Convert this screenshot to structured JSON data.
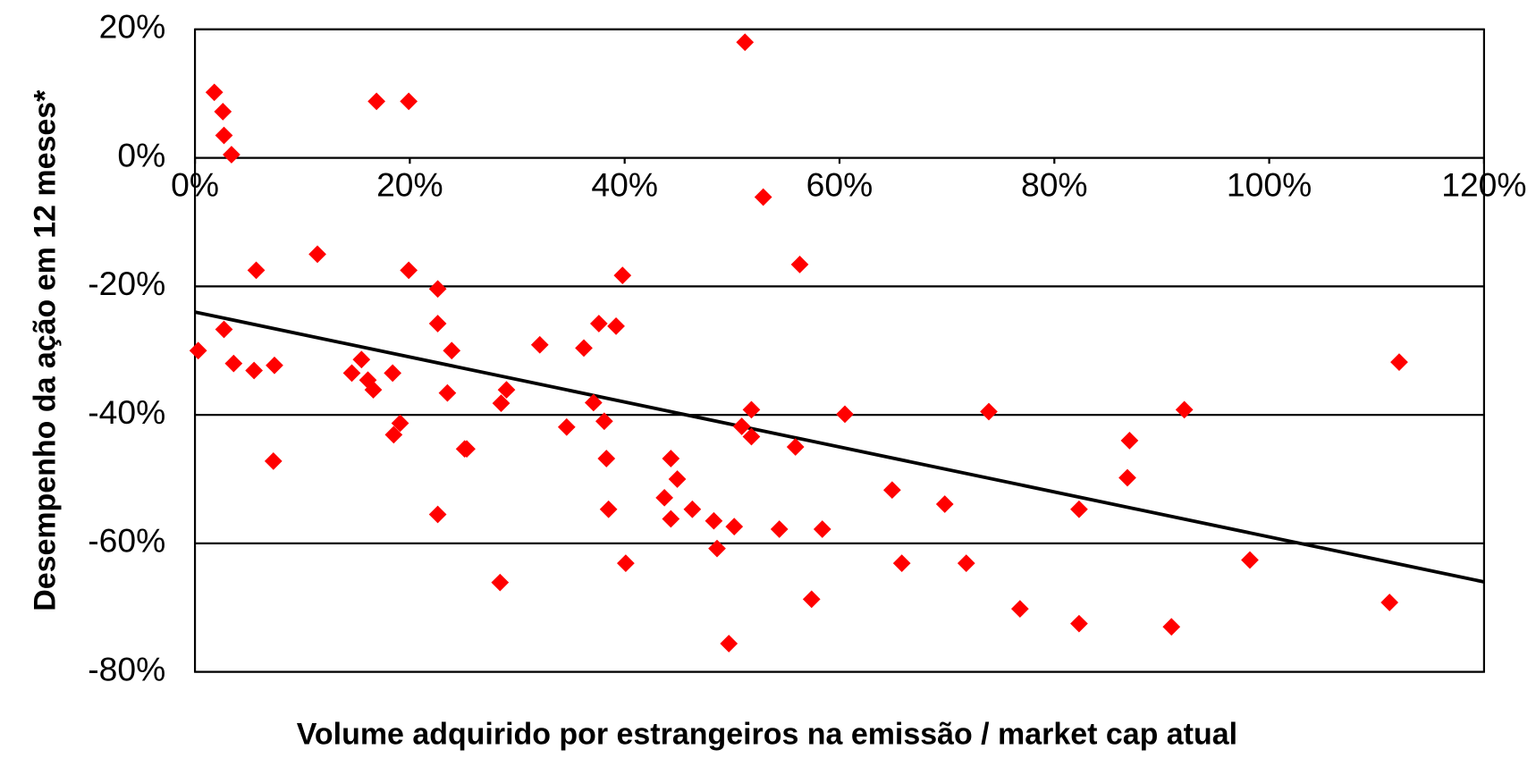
{
  "chart_data": {
    "type": "scatter",
    "x_label": "Volume adquirido por estrangeiros na emissão / market cap atual",
    "y_label": "Desempenho da ação em 12 meses*",
    "color": "#ff0000",
    "x": [
      1.8,
      2.6,
      2.7,
      3.4,
      16.9,
      19.9,
      51.2,
      52.9,
      11.4,
      5.7,
      19.9,
      22.6,
      39.8,
      56.3,
      0.3,
      2.7,
      3.6,
      5.5,
      7.4,
      7.3,
      14.6,
      15.5,
      16.1,
      16.6,
      18.4,
      18.5,
      19.1,
      22.6,
      23.9,
      23.5,
      25.1,
      25.3,
      22.6,
      28.4,
      28.5,
      29.0,
      32.1,
      34.6,
      36.2,
      37.6,
      37.1,
      38.1,
      38.3,
      38.5,
      39.2,
      40.1,
      43.7,
      44.3,
      44.3,
      44.9,
      46.3,
      48.3,
      48.6,
      50.2,
      49.7,
      50.9,
      51.8,
      51.8,
      55.9,
      54.4,
      57.4,
      58.4,
      60.5,
      64.9,
      65.8,
      69.8,
      71.8,
      73.9,
      76.8,
      82.3,
      82.3,
      86.8,
      87.0,
      90.9,
      92.1,
      98.2,
      112.1,
      111.2
    ],
    "values": [
      10.2,
      7.2,
      3.5,
      0.5,
      8.8,
      8.8,
      18.0,
      -6.1,
      -15.0,
      -17.5,
      -17.5,
      -20.4,
      -18.3,
      -16.6,
      -30.0,
      -26.7,
      -32.0,
      -33.1,
      -32.3,
      -47.2,
      -33.5,
      -31.4,
      -34.6,
      -36.1,
      -33.5,
      -43.1,
      -41.3,
      -25.8,
      -30.0,
      -36.6,
      -45.3,
      -45.3,
      -55.5,
      -66.1,
      -38.2,
      -36.1,
      -29.1,
      -41.9,
      -29.6,
      -25.8,
      -38.1,
      -41.0,
      -46.8,
      -54.7,
      -26.2,
      -63.1,
      -52.9,
      -46.8,
      -56.2,
      -50.0,
      -54.7,
      -56.5,
      -60.8,
      -57.4,
      -75.6,
      -41.8,
      -39.2,
      -43.4,
      -45.0,
      -57.8,
      -68.7,
      -57.8,
      -39.9,
      -51.7,
      -63.1,
      -53.9,
      -63.1,
      -39.5,
      -70.2,
      -54.7,
      -72.5,
      -49.8,
      -44.0,
      -73.0,
      -39.2,
      -62.6,
      -31.8,
      -69.2
    ],
    "trendline": {
      "x": [
        0,
        120
      ],
      "values": [
        -24,
        -66
      ],
      "color": "#000000"
    },
    "xlim": [
      0,
      120
    ],
    "ylim": [
      -80,
      20
    ],
    "xticks": [
      {
        "value": 0,
        "label": "0%"
      },
      {
        "value": 20,
        "label": "20%"
      },
      {
        "value": 40,
        "label": "40%"
      },
      {
        "value": 60,
        "label": "60%"
      },
      {
        "value": 80,
        "label": "80%"
      },
      {
        "value": 100,
        "label": "100%"
      },
      {
        "value": 120,
        "label": "120%"
      }
    ],
    "yticks": [
      {
        "value": -80,
        "label": "-80%"
      },
      {
        "value": -60,
        "label": "-60%"
      },
      {
        "value": -40,
        "label": "-40%"
      },
      {
        "value": -20,
        "label": "-20%"
      },
      {
        "value": 0,
        "label": "0%"
      },
      {
        "value": 20,
        "label": "20%"
      }
    ],
    "grid": true
  }
}
